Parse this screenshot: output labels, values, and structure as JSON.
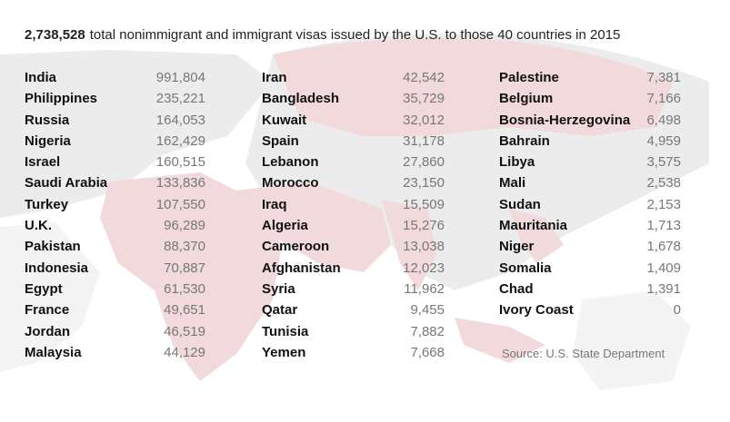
{
  "header": {
    "total": "2,738,528",
    "text": "total nonimmigrant and immigrant visas issued by the U.S. to those 40 countries in 2015"
  },
  "columns": [
    {
      "rows": [
        {
          "name": "India",
          "value": "991,804"
        },
        {
          "name": "Philippines",
          "value": "235,221"
        },
        {
          "name": "Russia",
          "value": "164,053"
        },
        {
          "name": "Nigeria",
          "value": "162,429"
        },
        {
          "name": "Israel",
          "value": "160,515"
        },
        {
          "name": "Saudi Arabia",
          "value": "133,836"
        },
        {
          "name": "Turkey",
          "value": "107,550"
        },
        {
          "name": "U.K.",
          "value": "96,289"
        },
        {
          "name": "Pakistan",
          "value": "88,370"
        },
        {
          "name": "Indonesia",
          "value": "70,887"
        },
        {
          "name": "Egypt",
          "value": "61,530"
        },
        {
          "name": "France",
          "value": "49,651"
        },
        {
          "name": "Jordan",
          "value": "46,519"
        },
        {
          "name": "Malaysia",
          "value": "44,129"
        }
      ]
    },
    {
      "rows": [
        {
          "name": "Iran",
          "value": "42,542"
        },
        {
          "name": "Bangladesh",
          "value": "35,729"
        },
        {
          "name": "Kuwait",
          "value": "32,012"
        },
        {
          "name": "Spain",
          "value": "31,178"
        },
        {
          "name": "Lebanon",
          "value": "27,860"
        },
        {
          "name": "Morocco",
          "value": "23,150"
        },
        {
          "name": "Iraq",
          "value": "15,509"
        },
        {
          "name": "Algeria",
          "value": "15,276"
        },
        {
          "name": "Cameroon",
          "value": "13,038"
        },
        {
          "name": "Afghanistan",
          "value": "12,023"
        },
        {
          "name": "Syria",
          "value": "11,962"
        },
        {
          "name": "Qatar",
          "value": "9,455"
        },
        {
          "name": "Tunisia",
          "value": "7,882"
        },
        {
          "name": "Yemen",
          "value": "7,668"
        }
      ]
    },
    {
      "rows": [
        {
          "name": "Palestine",
          "value": "7,381"
        },
        {
          "name": "Belgium",
          "value": "7,166"
        },
        {
          "name": "Bosnia-Herzegovina",
          "value": "6,498"
        },
        {
          "name": "Bahrain",
          "value": "4,959"
        },
        {
          "name": "Libya",
          "value": "3,575"
        },
        {
          "name": "Mali",
          "value": "2,538"
        },
        {
          "name": "Sudan",
          "value": "2,153"
        },
        {
          "name": "Mauritania",
          "value": "1,713"
        },
        {
          "name": "Niger",
          "value": "1,678"
        },
        {
          "name": "Somalia",
          "value": "1,409"
        },
        {
          "name": "Chad",
          "value": "1,391"
        },
        {
          "name": "Ivory Coast",
          "value": "0"
        }
      ]
    }
  ],
  "source": "Source: U.S. State Department"
}
